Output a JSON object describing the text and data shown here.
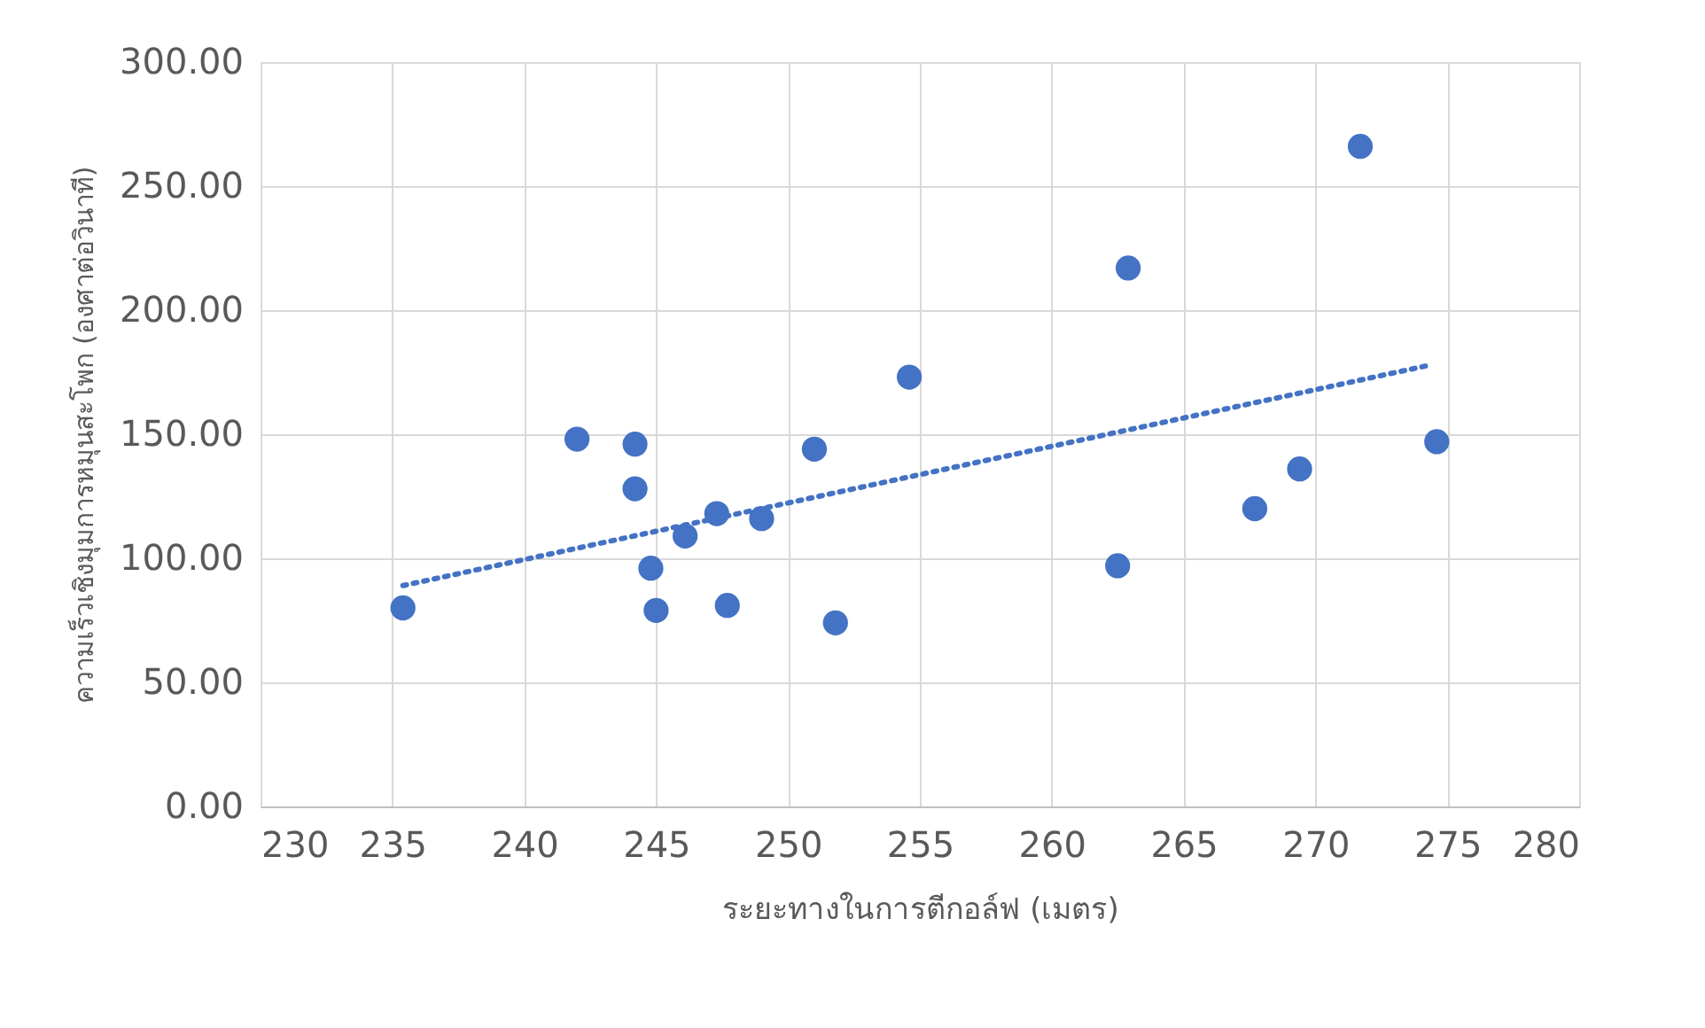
{
  "chart_data": {
    "type": "scatter",
    "xlabel": "ระยะทางในการตีกอล์ฟ (เมตร)",
    "ylabel": "ความเร็วเชิงมุมการหมุนสะโพก (องศาต่อวินาที)",
    "x": [
      235.4,
      242.0,
      244.2,
      244.2,
      244.8,
      245.0,
      246.1,
      247.3,
      247.7,
      249.0,
      251.0,
      251.8,
      254.6,
      262.5,
      262.9,
      267.7,
      269.4,
      271.7,
      274.6
    ],
    "series": [
      {
        "type": "scatter",
        "color": "#4472c4",
        "marker": "circle",
        "values": [
          80,
          148,
          146,
          128,
          96,
          79,
          109,
          118,
          81,
          116,
          144,
          74,
          173,
          97,
          217,
          120,
          136,
          266,
          147
        ]
      },
      {
        "type": "line",
        "color": "#4472c4",
        "line_style": "dotted",
        "x": [
          235.4,
          274.4
        ],
        "values": [
          89,
          178
        ]
      }
    ],
    "xlim": [
      230,
      280
    ],
    "xticks": [
      230,
      235,
      240,
      245,
      250,
      255,
      260,
      265,
      270,
      275,
      280
    ],
    "ylim": [
      0,
      300
    ],
    "yticks": [
      {
        "value": 0,
        "label": "0.00"
      },
      {
        "value": 50,
        "label": "50.00"
      },
      {
        "value": 100,
        "label": "100.00"
      },
      {
        "value": 150,
        "label": "150.00"
      },
      {
        "value": 200,
        "label": "200.00"
      },
      {
        "value": 250,
        "label": "250.00"
      },
      {
        "value": 300,
        "label": "300.00"
      }
    ],
    "grid": true
  }
}
